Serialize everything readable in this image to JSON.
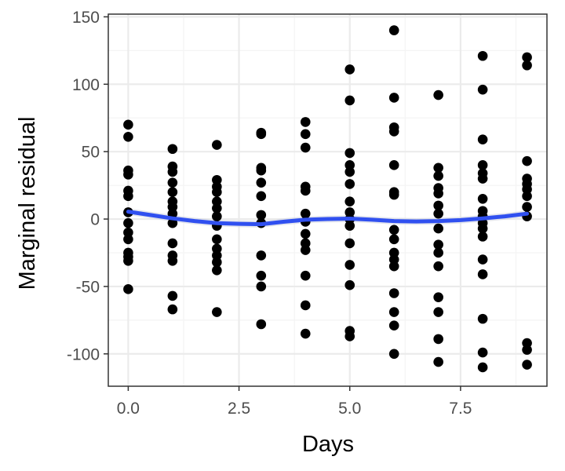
{
  "chart_data": {
    "type": "scatter",
    "xlabel": "Days",
    "ylabel": "Marginal residual",
    "xlim": [
      -0.45,
      9.45
    ],
    "ylim": [
      -124,
      152
    ],
    "x_ticks": [
      0,
      2.5,
      5,
      7.5
    ],
    "x_tick_labels": [
      "0.0",
      "2.5",
      "5.0",
      "7.5"
    ],
    "y_ticks": [
      -100,
      -50,
      0,
      50,
      100,
      150
    ],
    "y_tick_labels": [
      "-100",
      "-50",
      "0",
      "50",
      "100",
      "150"
    ],
    "grid": true,
    "legend": "none",
    "points": [
      [
        0,
        70
      ],
      [
        0,
        61
      ],
      [
        0,
        36
      ],
      [
        0,
        33
      ],
      [
        0,
        21
      ],
      [
        0,
        17
      ],
      [
        0,
        5
      ],
      [
        0,
        -3
      ],
      [
        0,
        -10
      ],
      [
        0,
        -15
      ],
      [
        0,
        -25
      ],
      [
        0,
        -28
      ],
      [
        0,
        -31
      ],
      [
        0,
        -52
      ],
      [
        1,
        52
      ],
      [
        1,
        39
      ],
      [
        1,
        35
      ],
      [
        1,
        27
      ],
      [
        1,
        20
      ],
      [
        1,
        13
      ],
      [
        1,
        9
      ],
      [
        1,
        4
      ],
      [
        1,
        -3
      ],
      [
        1,
        -18
      ],
      [
        1,
        -27
      ],
      [
        1,
        -31
      ],
      [
        1,
        -57
      ],
      [
        1,
        -67
      ],
      [
        2,
        55
      ],
      [
        2,
        29
      ],
      [
        2,
        24
      ],
      [
        2,
        20
      ],
      [
        2,
        13
      ],
      [
        2,
        8
      ],
      [
        2,
        2
      ],
      [
        2,
        -5
      ],
      [
        2,
        -15
      ],
      [
        2,
        -22
      ],
      [
        2,
        -27
      ],
      [
        2,
        -32
      ],
      [
        2,
        -38
      ],
      [
        2,
        -69
      ],
      [
        3,
        64
      ],
      [
        3,
        63
      ],
      [
        3,
        38
      ],
      [
        3,
        36
      ],
      [
        3,
        27
      ],
      [
        3,
        17
      ],
      [
        3,
        3
      ],
      [
        3,
        -3
      ],
      [
        3,
        -27
      ],
      [
        3,
        -42
      ],
      [
        3,
        -50
      ],
      [
        3,
        -78
      ],
      [
        4,
        72
      ],
      [
        4,
        63
      ],
      [
        4,
        53
      ],
      [
        4,
        24
      ],
      [
        4,
        21
      ],
      [
        4,
        4
      ],
      [
        4,
        -2
      ],
      [
        4,
        -11
      ],
      [
        4,
        -18
      ],
      [
        4,
        -23
      ],
      [
        4,
        -42
      ],
      [
        4,
        -64
      ],
      [
        4,
        -85
      ],
      [
        5,
        111
      ],
      [
        5,
        88
      ],
      [
        5,
        49
      ],
      [
        5,
        40
      ],
      [
        5,
        35
      ],
      [
        5,
        26
      ],
      [
        5,
        13
      ],
      [
        5,
        5
      ],
      [
        5,
        0
      ],
      [
        5,
        -5
      ],
      [
        5,
        -18
      ],
      [
        5,
        -34
      ],
      [
        5,
        -49
      ],
      [
        5,
        -83
      ],
      [
        5,
        -87
      ],
      [
        6,
        140
      ],
      [
        6,
        90
      ],
      [
        6,
        68
      ],
      [
        6,
        65
      ],
      [
        6,
        40
      ],
      [
        6,
        20
      ],
      [
        6,
        18
      ],
      [
        6,
        -8
      ],
      [
        6,
        -15
      ],
      [
        6,
        -25
      ],
      [
        6,
        -30
      ],
      [
        6,
        -35
      ],
      [
        6,
        -55
      ],
      [
        6,
        -69
      ],
      [
        6,
        -79
      ],
      [
        6,
        -100
      ],
      [
        7,
        92
      ],
      [
        7,
        38
      ],
      [
        7,
        32
      ],
      [
        7,
        23
      ],
      [
        7,
        19
      ],
      [
        7,
        10
      ],
      [
        7,
        4
      ],
      [
        7,
        -7
      ],
      [
        7,
        -19
      ],
      [
        7,
        -25
      ],
      [
        7,
        -35
      ],
      [
        7,
        -58
      ],
      [
        7,
        -69
      ],
      [
        7,
        -89
      ],
      [
        7,
        -106
      ],
      [
        8,
        121
      ],
      [
        8,
        96
      ],
      [
        8,
        59
      ],
      [
        8,
        40
      ],
      [
        8,
        34
      ],
      [
        8,
        30
      ],
      [
        8,
        15
      ],
      [
        8,
        6
      ],
      [
        8,
        2
      ],
      [
        8,
        -3
      ],
      [
        8,
        -7
      ],
      [
        8,
        -13
      ],
      [
        8,
        -30
      ],
      [
        8,
        -41
      ],
      [
        8,
        -74
      ],
      [
        8,
        -99
      ],
      [
        8,
        -110
      ],
      [
        9,
        120
      ],
      [
        9,
        114
      ],
      [
        9,
        43
      ],
      [
        9,
        30
      ],
      [
        9,
        26
      ],
      [
        9,
        22
      ],
      [
        9,
        17
      ],
      [
        9,
        9
      ],
      [
        9,
        2
      ],
      [
        9,
        -92
      ],
      [
        9,
        -97
      ],
      [
        9,
        -108
      ]
    ],
    "smooth": {
      "x": [
        0,
        0.5,
        1,
        1.5,
        2,
        2.5,
        3,
        3.5,
        4,
        4.5,
        5,
        5.5,
        6,
        6.5,
        7,
        7.5,
        8,
        8.5,
        9
      ],
      "y": [
        5.5,
        3,
        0.5,
        -1.5,
        -3,
        -3.5,
        -3.8,
        -2,
        -0.5,
        0,
        0.3,
        -0.5,
        -1.5,
        -1.8,
        -1.5,
        -0.8,
        0.5,
        2,
        4
      ],
      "band": 2.5
    },
    "colors": {
      "points": "#000000",
      "smooth": "#3050f0",
      "band": "#d9dbe6",
      "grid_major": "#ebebeb",
      "grid_minor": "#f4f4f4",
      "panel_border": "#333333",
      "tick_label": "#4d4d4d"
    }
  }
}
